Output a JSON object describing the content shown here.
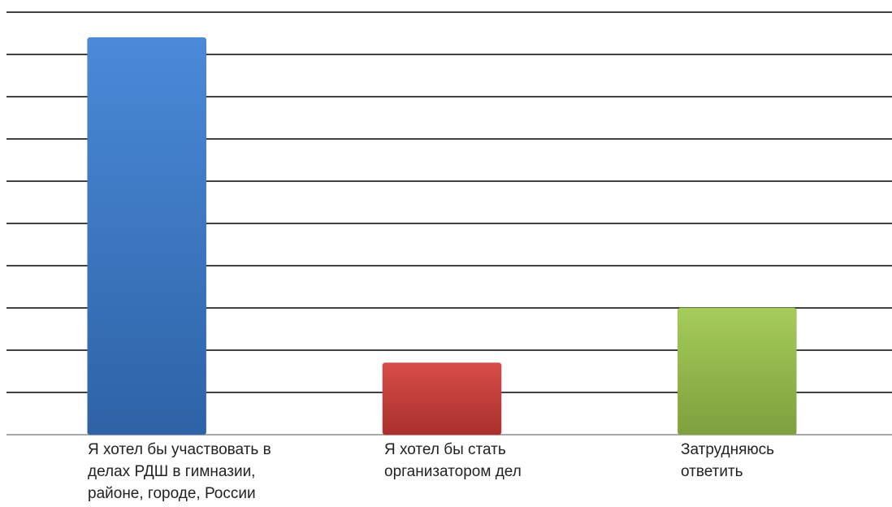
{
  "chart_data": {
    "type": "bar",
    "categories": [
      "Я хотел бы участвовать в делах РДШ в гимназии, районе, городе, России",
      "Я хотел бы стать организатором дел",
      "Затрудняюсь ответить"
    ],
    "category_lines": [
      [
        "Я хотел бы участвовать в",
        "делах РДШ в гимназии,",
        "районе, городе, России"
      ],
      [
        "Я хотел бы стать",
        "организатором дел"
      ],
      [
        "Затрудняюсь",
        "ответить"
      ]
    ],
    "values": [
      9.4,
      1.7,
      3.0
    ],
    "ylim": [
      0,
      10
    ],
    "gridlines": true,
    "colors": [
      "#3b78c4",
      "#c43c39",
      "#93b94c"
    ],
    "title": "",
    "xlabel": "",
    "ylabel": ""
  }
}
